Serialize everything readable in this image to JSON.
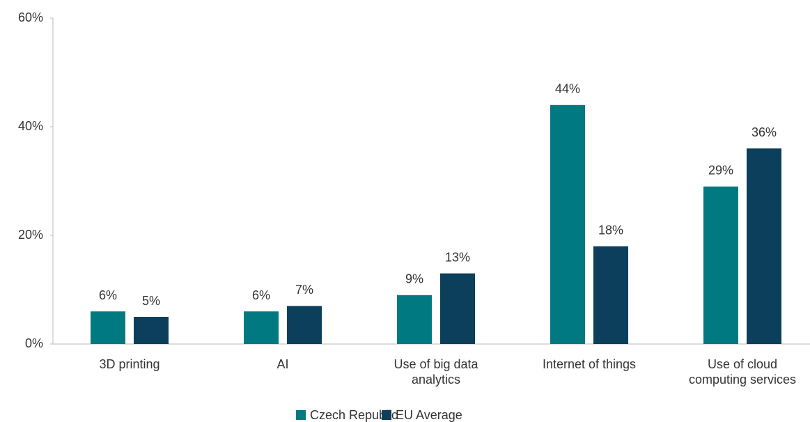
{
  "chart_data": {
    "type": "bar",
    "categories": [
      "3D printing",
      "AI",
      "Use of big data analytics",
      "Internet of things",
      "Use of cloud computing services"
    ],
    "series": [
      {
        "name": "Czech Republic",
        "color": "#007a80",
        "values": [
          6,
          6,
          9,
          44,
          29
        ],
        "value_labels": [
          "6%",
          "6%",
          "9%",
          "44%",
          "29%"
        ]
      },
      {
        "name": "EU Average",
        "color": "#0b3f5c",
        "values": [
          5,
          7,
          13,
          18,
          36
        ],
        "value_labels": [
          "5%",
          "7%",
          "13%",
          "18%",
          "36%"
        ]
      }
    ],
    "ylim": [
      0,
      60
    ],
    "yticks": [
      {
        "value": 0,
        "label": "0%"
      },
      {
        "value": 20,
        "label": "20%"
      },
      {
        "value": 40,
        "label": "40%"
      },
      {
        "value": 60,
        "label": "60%"
      }
    ],
    "grid": false,
    "legend": "bottom"
  }
}
